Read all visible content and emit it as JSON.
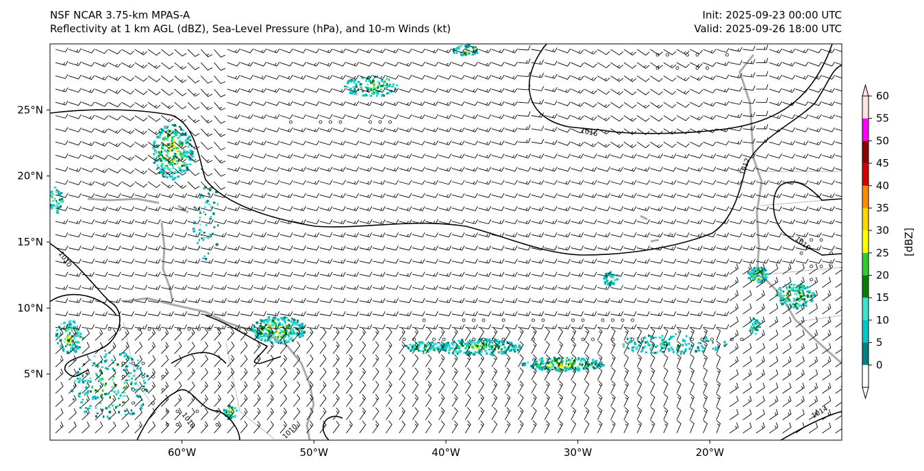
{
  "header": {
    "title": "NSF NCAR 3.75-km MPAS-A",
    "subtitle": "Reflectivity at 1 km AGL (dBZ), Sea-Level Pressure (hPa), and 10-m Winds (kt)",
    "init": "Init: 2025-09-23 00:00 UTC",
    "valid": "Valid: 2025-09-26 18:00 UTC"
  },
  "map": {
    "lat_ticks": [
      {
        "deg": 25,
        "label": "25°N"
      },
      {
        "deg": 20,
        "label": "20°N"
      },
      {
        "deg": 15,
        "label": "15°N"
      },
      {
        "deg": 10,
        "label": "10°N"
      },
      {
        "deg": 5,
        "label": "5°N"
      }
    ],
    "lon_ticks": [
      {
        "deg": -60,
        "label": "60°W"
      },
      {
        "deg": -50,
        "label": "50°W"
      },
      {
        "deg": -40,
        "label": "40°W"
      },
      {
        "deg": -30,
        "label": "30°W"
      },
      {
        "deg": -20,
        "label": "20°W"
      }
    ],
    "extent": {
      "lon": [
        -70,
        -10
      ],
      "lat": [
        0,
        30
      ]
    },
    "isobar_labels": [
      "1016",
      "1012",
      "1010",
      "1010",
      "1010",
      "1010",
      "1014"
    ]
  },
  "colorbar": {
    "label": "[dBZ]",
    "levels": [
      "0",
      "5",
      "10",
      "15",
      "20",
      "25",
      "30",
      "35",
      "40",
      "45",
      "50",
      "55",
      "60"
    ],
    "colors": [
      "#008080",
      "#00c8c8",
      "#40e0d0",
      "#008000",
      "#32cd32",
      "#ffff00",
      "#ffd700",
      "#ff8c00",
      "#d20000",
      "#8b0000",
      "#ff00ff",
      "#ffe4e1"
    ]
  }
}
